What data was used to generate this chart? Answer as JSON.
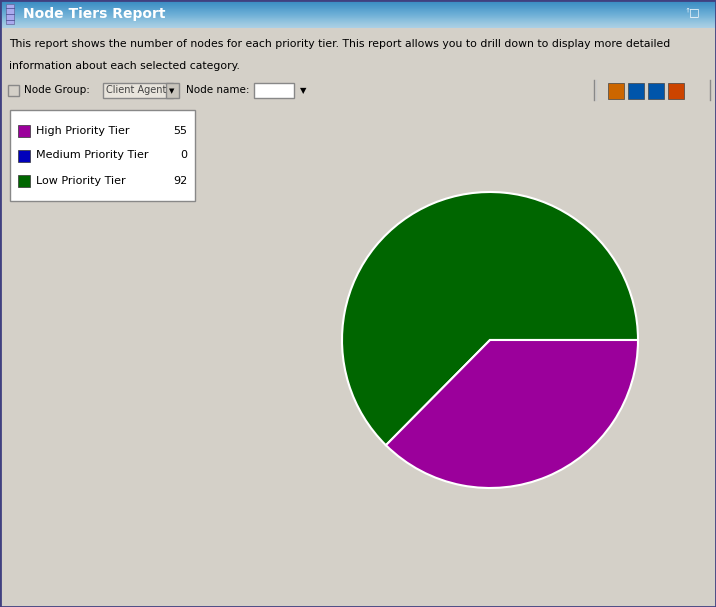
{
  "title": "Node Tiers Report",
  "description_line1": "This report shows the number of nodes for each priority tier. This report allows you to drill down to display more detailed",
  "description_line2": "information about each selected category.",
  "legend_labels": [
    "High Priority Tier",
    "Medium Priority Tier",
    "Low Priority Tier"
  ],
  "legend_values": [
    55,
    0,
    92
  ],
  "legend_colors": [
    "#9b009b",
    "#0000bb",
    "#006600"
  ],
  "pie_values": [
    55,
    0.0001,
    92
  ],
  "pie_colors": [
    "#9b009b",
    "#0000bb",
    "#006600"
  ],
  "background_color": "#d4d0c8",
  "titlebar_color_top": "#3a5fa8",
  "titlebar_color_bot": "#1a3575",
  "titlebar_text_color": "#ffffff",
  "border_color": "#808080",
  "legend_box_bg": "#ffffff",
  "pie_startangle": 0,
  "pie_counterclock": false
}
